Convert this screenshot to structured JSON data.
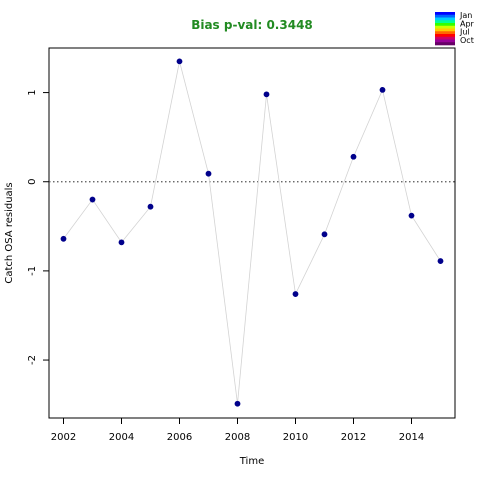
{
  "chart_data": {
    "type": "line",
    "title": "Bias p-val: 0.3448",
    "title_color": "#228B22",
    "xlabel": "Time",
    "ylabel": "Catch OSA residuals",
    "xlim": [
      2001.5,
      2015.5
    ],
    "ylim": [
      -2.65,
      1.5
    ],
    "x_ticks": [
      2002,
      2004,
      2006,
      2008,
      2010,
      2012,
      2014
    ],
    "x_tick_labels": [
      "2002",
      "2004",
      "2006",
      "2008",
      "2010",
      "2012",
      "2014"
    ],
    "y_ticks": [
      -2,
      -1,
      0,
      1
    ],
    "y_tick_labels": [
      "-2",
      "-1",
      "0",
      "1"
    ],
    "reference_line": {
      "y": 0,
      "style": "dotted",
      "color": "#555555"
    },
    "line_color": "#d3d3d3",
    "point_color": "#00008B",
    "grid": false,
    "x": [
      2002,
      2003,
      2004,
      2005,
      2006,
      2007,
      2008,
      2009,
      2010,
      2011,
      2012,
      2013,
      2014,
      2015
    ],
    "y": [
      -0.64,
      -0.2,
      -0.68,
      -0.28,
      1.35,
      0.09,
      -2.49,
      0.98,
      -1.26,
      -0.59,
      0.28,
      1.03,
      -0.38,
      -0.89
    ],
    "legend": {
      "placement": "top-right",
      "labels": [
        "Jan",
        "Apr",
        "Jul",
        "Oct"
      ],
      "colors": [
        "#0000ff",
        "#0066ff",
        "#00ccff",
        "#00ff99",
        "#33ff00",
        "#ccff00",
        "#ffcc00",
        "#ff6600",
        "#ff0000",
        "#cc0066",
        "#990099",
        "#660066"
      ]
    }
  }
}
